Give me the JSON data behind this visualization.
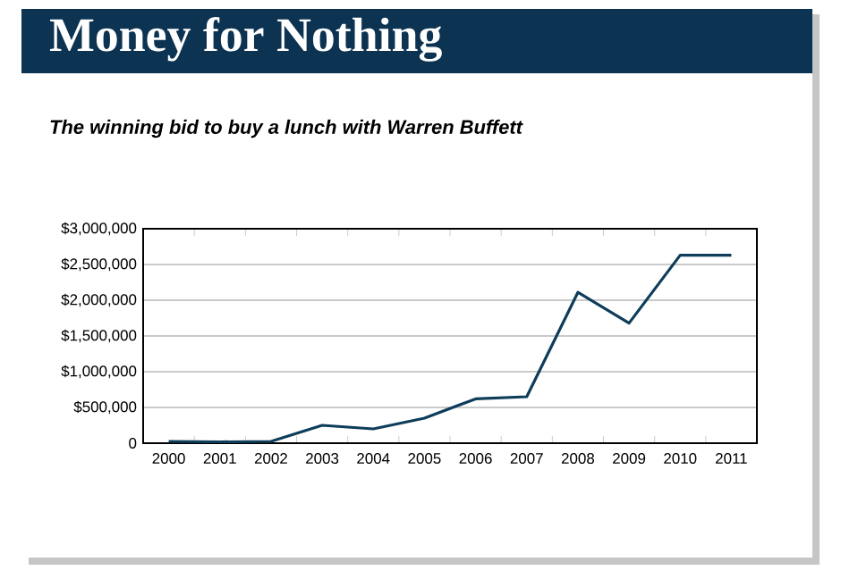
{
  "chart_data": {
    "type": "line",
    "title": "Money for Nothing",
    "subtitle": "The winning bid to buy a lunch with Warren Buffett",
    "categories": [
      "2000",
      "2001",
      "2002",
      "2003",
      "2004",
      "2005",
      "2006",
      "2007",
      "2008",
      "2009",
      "2010",
      "2011"
    ],
    "values": [
      25000,
      18000,
      25000,
      250000,
      200000,
      350000,
      620000,
      650000,
      2110000,
      1680000,
      2630000,
      2630000
    ],
    "color": "#0e3d5a",
    "ylim": [
      0,
      3000000
    ],
    "yticks": [
      {
        "value": 0,
        "label": "0"
      },
      {
        "value": 500000,
        "label": "$500,000"
      },
      {
        "value": 1000000,
        "label": "$1,000,000"
      },
      {
        "value": 1500000,
        "label": "$1,500,000"
      },
      {
        "value": 2000000,
        "label": "$2,000,000"
      },
      {
        "value": 2500000,
        "label": "$2,500,000"
      },
      {
        "value": 3000000,
        "label": "$3,000,000"
      }
    ],
    "grid": "y",
    "marker": "none",
    "line_style": "solid"
  }
}
